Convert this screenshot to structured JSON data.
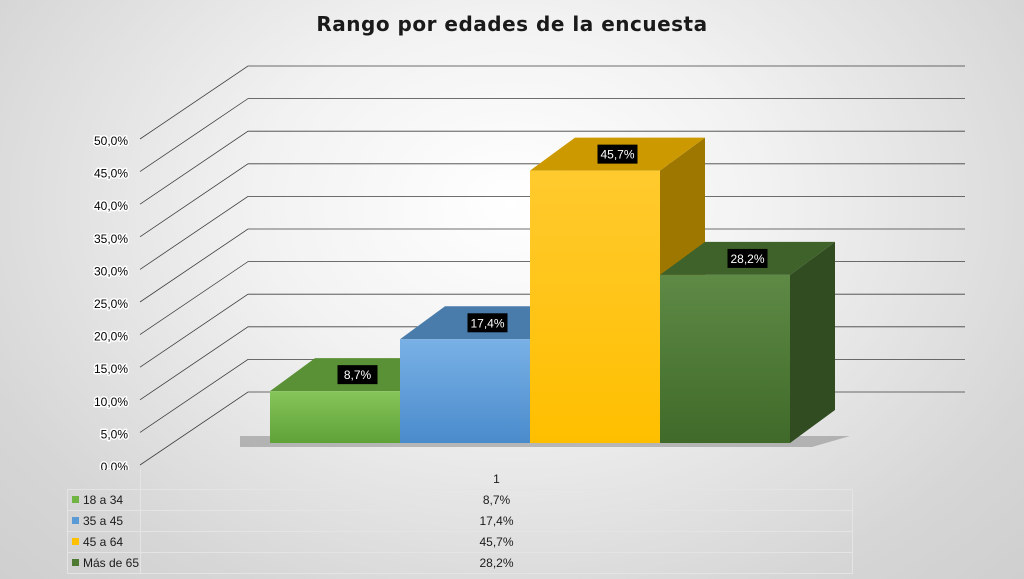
{
  "chart_data": {
    "type": "bar",
    "title": "Rango por edades de la encuesta",
    "categories": [
      "1"
    ],
    "series": [
      {
        "name": "18 a 34",
        "values": [
          8.7
        ],
        "label": "8,7%",
        "color": "#70b443"
      },
      {
        "name": "35 a 45",
        "values": [
          17.4
        ],
        "label": "17,4%",
        "color": "#5b9bd5"
      },
      {
        "name": "45 a 64",
        "values": [
          45.7
        ],
        "label": "45,7%",
        "color": "#ffc000"
      },
      {
        "name": "Más de 65",
        "values": [
          28.2
        ],
        "label": "28,2%",
        "color": "#4e7a34"
      }
    ],
    "ylim": [
      0,
      50
    ],
    "yticks": [
      "0,0%",
      "5,0%",
      "10,0%",
      "15,0%",
      "20,0%",
      "25,0%",
      "30,0%",
      "35,0%",
      "40,0%",
      "45,0%",
      "50,0%"
    ],
    "grid": true,
    "legend": "data table below chart"
  }
}
